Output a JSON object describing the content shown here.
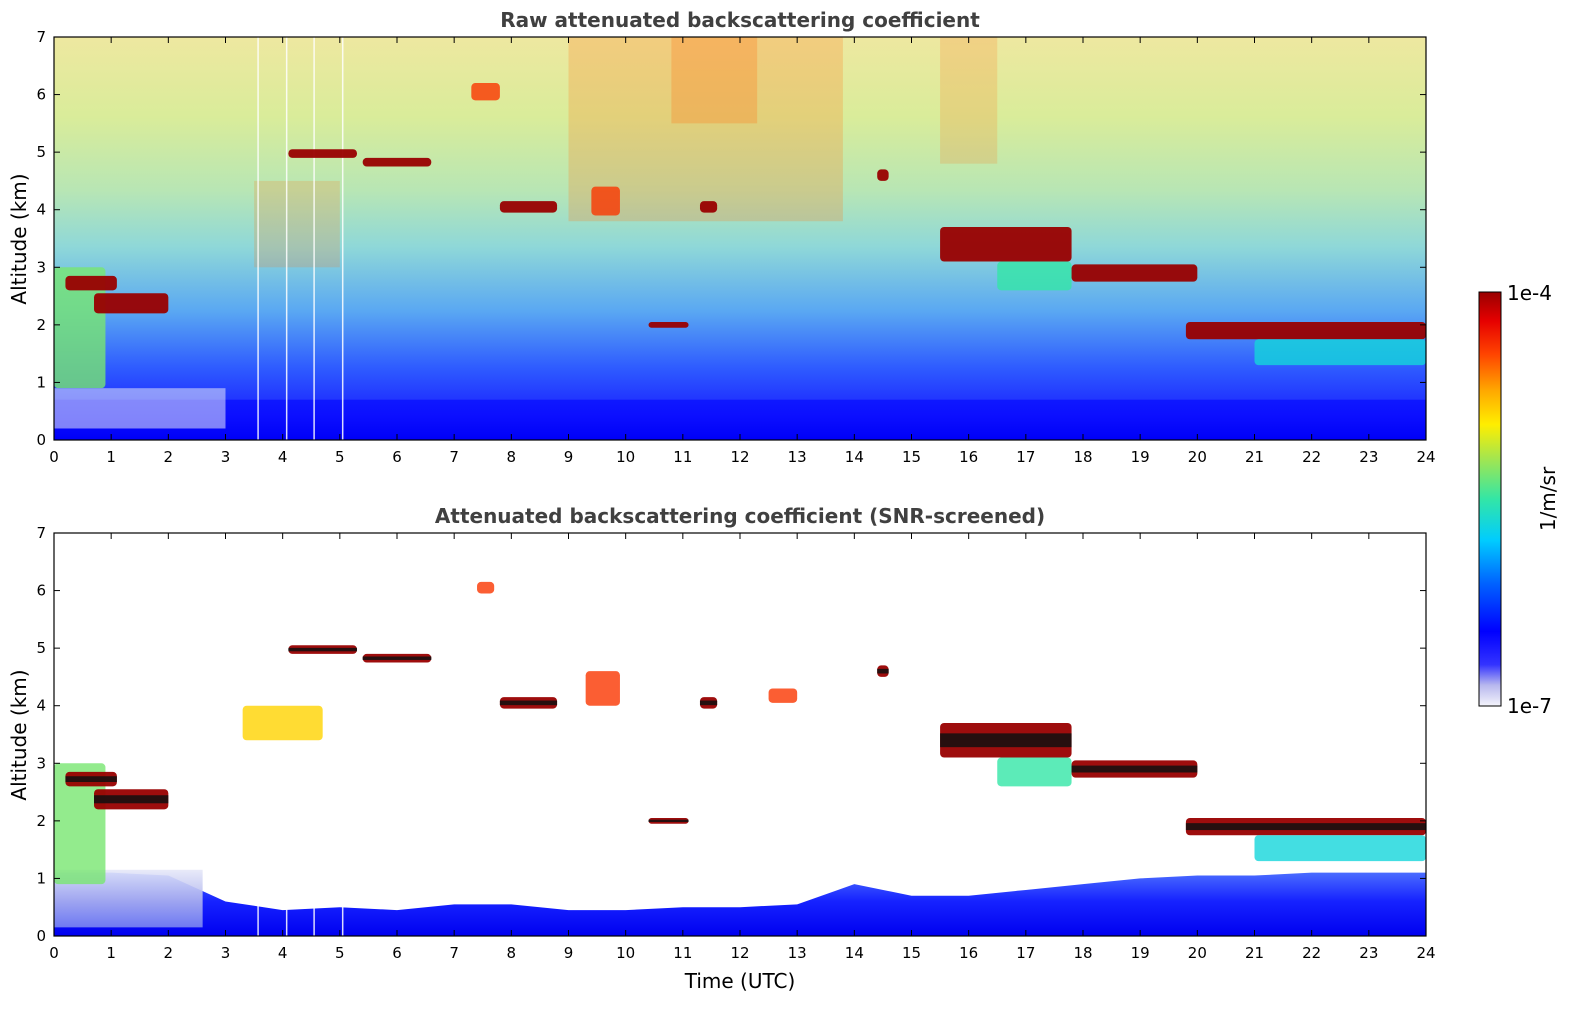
{
  "chart_data": [
    {
      "type": "heatmap",
      "title": "Raw attenuated backscattering coefficient",
      "ylabel": "Altitude (km)",
      "xlabel": "",
      "xlim": [
        0,
        24
      ],
      "ylim": [
        0,
        7
      ],
      "x_ticks": [
        "0",
        "1",
        "2",
        "3",
        "4",
        "5",
        "6",
        "7",
        "8",
        "9",
        "10",
        "11",
        "12",
        "13",
        "14",
        "15",
        "16",
        "17",
        "18",
        "19",
        "20",
        "21",
        "22",
        "23",
        "24"
      ],
      "y_ticks": [
        "0",
        "1",
        "2",
        "3",
        "4",
        "5",
        "6",
        "7"
      ],
      "screened": false,
      "features": [
        {
          "x0": 0.0,
          "x1": 0.9,
          "y0": 0.9,
          "y1": 3.0,
          "level": 0.55
        },
        {
          "x0": 0.2,
          "x1": 1.1,
          "y0": 2.6,
          "y1": 2.85,
          "level": 1.0
        },
        {
          "x0": 0.7,
          "x1": 2.0,
          "y0": 2.2,
          "y1": 2.55,
          "level": 1.0
        },
        {
          "x0": 4.1,
          "x1": 5.3,
          "y0": 4.9,
          "y1": 5.05,
          "level": 1.0
        },
        {
          "x0": 5.4,
          "x1": 6.6,
          "y0": 4.75,
          "y1": 4.9,
          "level": 1.0
        },
        {
          "x0": 7.8,
          "x1": 8.8,
          "y0": 3.95,
          "y1": 4.15,
          "level": 1.0
        },
        {
          "x0": 7.3,
          "x1": 7.8,
          "y0": 5.9,
          "y1": 6.2,
          "level": 0.85
        },
        {
          "x0": 9.4,
          "x1": 9.9,
          "y0": 3.9,
          "y1": 4.4,
          "level": 0.85
        },
        {
          "x0": 11.3,
          "x1": 11.6,
          "y0": 3.95,
          "y1": 4.15,
          "level": 1.0
        },
        {
          "x0": 10.4,
          "x1": 11.1,
          "y0": 1.95,
          "y1": 2.05,
          "level": 1.0
        },
        {
          "x0": 14.4,
          "x1": 14.6,
          "y0": 4.5,
          "y1": 4.7,
          "level": 1.0
        },
        {
          "x0": 15.5,
          "x1": 17.8,
          "y0": 3.1,
          "y1": 3.7,
          "level": 1.0
        },
        {
          "x0": 16.5,
          "x1": 17.8,
          "y0": 2.6,
          "y1": 3.1,
          "level": 0.5
        },
        {
          "x0": 17.8,
          "x1": 20.0,
          "y0": 2.75,
          "y1": 3.05,
          "level": 1.0
        },
        {
          "x0": 19.8,
          "x1": 24.0,
          "y0": 1.75,
          "y1": 2.05,
          "level": 1.0
        },
        {
          "x0": 21.0,
          "x1": 24.0,
          "y0": 1.3,
          "y1": 1.75,
          "level": 0.45
        }
      ]
    },
    {
      "type": "heatmap",
      "title": "Attenuated backscattering coefficient (SNR-screened)",
      "ylabel": "Altitude (km)",
      "xlabel": "Time (UTC)",
      "xlim": [
        0,
        24
      ],
      "ylim": [
        0,
        7
      ],
      "x_ticks": [
        "0",
        "1",
        "2",
        "3",
        "4",
        "5",
        "6",
        "7",
        "8",
        "9",
        "10",
        "11",
        "12",
        "13",
        "14",
        "15",
        "16",
        "17",
        "18",
        "19",
        "20",
        "21",
        "22",
        "23",
        "24"
      ],
      "y_ticks": [
        "0",
        "1",
        "2",
        "3",
        "4",
        "5",
        "6",
        "7"
      ],
      "screened": true,
      "features": [
        {
          "x0": 0.0,
          "x1": 0.9,
          "y0": 0.9,
          "y1": 3.0,
          "level": 0.55
        },
        {
          "x0": 0.2,
          "x1": 1.1,
          "y0": 2.6,
          "y1": 2.85,
          "level": 1.0
        },
        {
          "x0": 0.7,
          "x1": 2.0,
          "y0": 2.2,
          "y1": 2.55,
          "level": 1.0
        },
        {
          "x0": 3.3,
          "x1": 4.7,
          "y0": 3.4,
          "y1": 4.0,
          "level": 0.7
        },
        {
          "x0": 4.1,
          "x1": 5.3,
          "y0": 4.9,
          "y1": 5.05,
          "level": 1.0
        },
        {
          "x0": 5.4,
          "x1": 6.6,
          "y0": 4.75,
          "y1": 4.9,
          "level": 1.0
        },
        {
          "x0": 7.8,
          "x1": 8.8,
          "y0": 3.95,
          "y1": 4.15,
          "level": 1.0
        },
        {
          "x0": 7.4,
          "x1": 7.7,
          "y0": 5.95,
          "y1": 6.15,
          "level": 0.85
        },
        {
          "x0": 9.3,
          "x1": 9.9,
          "y0": 4.0,
          "y1": 4.6,
          "level": 0.85
        },
        {
          "x0": 10.4,
          "x1": 11.1,
          "y0": 1.95,
          "y1": 2.05,
          "level": 1.0
        },
        {
          "x0": 11.3,
          "x1": 11.6,
          "y0": 3.95,
          "y1": 4.15,
          "level": 1.0
        },
        {
          "x0": 12.5,
          "x1": 13.0,
          "y0": 4.05,
          "y1": 4.3,
          "level": 0.85
        },
        {
          "x0": 14.4,
          "x1": 14.6,
          "y0": 4.5,
          "y1": 4.7,
          "level": 1.0
        },
        {
          "x0": 15.5,
          "x1": 17.8,
          "y0": 3.1,
          "y1": 3.7,
          "level": 1.0
        },
        {
          "x0": 16.5,
          "x1": 17.8,
          "y0": 2.6,
          "y1": 3.1,
          "level": 0.5
        },
        {
          "x0": 17.8,
          "x1": 20.0,
          "y0": 2.75,
          "y1": 3.05,
          "level": 1.0
        },
        {
          "x0": 19.8,
          "x1": 24.0,
          "y0": 1.75,
          "y1": 2.05,
          "level": 1.0
        },
        {
          "x0": 21.0,
          "x1": 24.0,
          "y0": 1.3,
          "y1": 1.75,
          "level": 0.45
        }
      ]
    }
  ],
  "colorbar": {
    "label": "1/m/sr",
    "max_label": "1e-4",
    "min_label": "1e-7",
    "scale": "log",
    "range": [
      1e-07,
      0.0001
    ],
    "colormap": [
      "#f4f4fb",
      "#b8b8ee",
      "#3333ff",
      "#0000ff",
      "#0066ff",
      "#00ccff",
      "#33e6a6",
      "#a6e64d",
      "#ffee00",
      "#ffaa00",
      "#ff4400",
      "#e60000",
      "#990000"
    ]
  }
}
